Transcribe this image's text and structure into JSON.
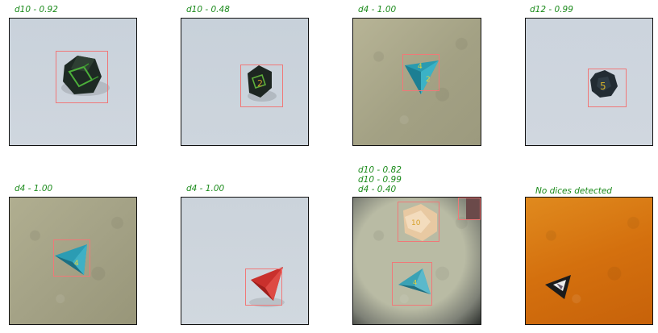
{
  "panels": [
    {
      "title": "d10 - 0.92"
    },
    {
      "title": "d10 - 0.48"
    },
    {
      "title": "d4 - 1.00"
    },
    {
      "title": "d12 - 0.99"
    },
    {
      "title": "d4 - 1.00"
    },
    {
      "title": "d4 - 1.00"
    },
    {
      "title": "d10 - 0.82\nd10 - 0.99\nd4 - 0.40"
    },
    {
      "title": "No dices detected"
    }
  ],
  "colors": {
    "title_text": "#1a8a1a",
    "bbox": "#f07878",
    "pale_bg": "#c9d2db",
    "stone_bg": "#a7a587",
    "orange_bg": "#d9730f"
  }
}
